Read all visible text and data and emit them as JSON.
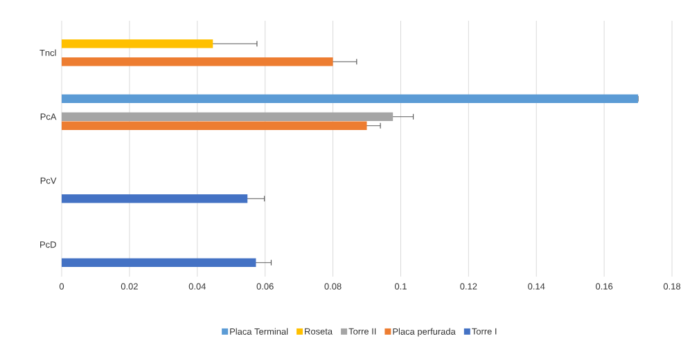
{
  "chart_data": {
    "type": "bar",
    "orientation": "horizontal",
    "categories": [
      "Tncl",
      "PcA",
      "PcV",
      "PcD"
    ],
    "series": [
      {
        "name": "Torre I",
        "color": "#4472c4",
        "values": [
          null,
          null,
          0.0548,
          0.0573
        ],
        "errors": [
          null,
          null,
          0.005,
          0.0045
        ]
      },
      {
        "name": "Placa perfurada",
        "color": "#ed7d31",
        "values": [
          0.08,
          0.09,
          null,
          null
        ],
        "errors": [
          0.007,
          0.004,
          null,
          null
        ]
      },
      {
        "name": "Torre II",
        "color": "#a5a5a5",
        "values": [
          null,
          0.0977,
          0,
          0
        ],
        "errors": [
          null,
          0.006,
          null,
          null
        ]
      },
      {
        "name": "Roseta",
        "color": "#ffc000",
        "values": [
          0.0446,
          null,
          null,
          null
        ],
        "errors": [
          0.013,
          null,
          null,
          null
        ]
      },
      {
        "name": "Placa Terminal",
        "color": "#5b9bd5",
        "values": [
          null,
          0.17,
          null,
          null
        ],
        "errors": [
          null,
          0,
          null,
          null
        ]
      }
    ],
    "xlim": [
      0,
      0.18
    ],
    "xticks": [
      0,
      0.02,
      0.04,
      0.06,
      0.08,
      0.1,
      0.12,
      0.14,
      0.16,
      0.18
    ],
    "grid": "x",
    "legend": "bottom"
  }
}
